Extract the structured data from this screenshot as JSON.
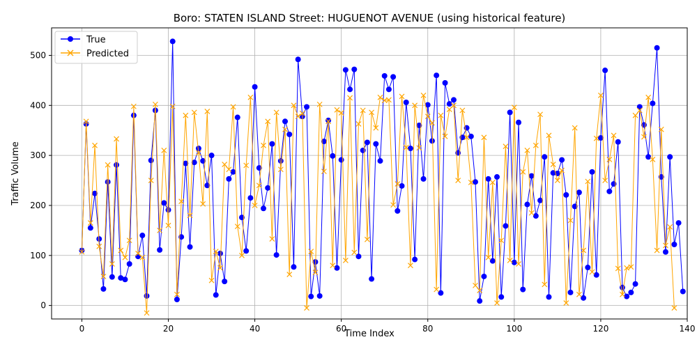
{
  "chart_data": {
    "type": "line",
    "title": "Boro: STATEN ISLAND Street: HUGUENOT AVENUE (using historical feature)",
    "xlabel": "Time Index",
    "ylabel": "Traffic Volume",
    "xlim": [
      -7,
      140
    ],
    "ylim": [
      -27,
      555
    ],
    "xticks": [
      0,
      20,
      40,
      60,
      80,
      100,
      120,
      140
    ],
    "yticks": [
      0,
      100,
      200,
      300,
      400,
      500
    ],
    "grid": true,
    "legend_position": "top-left",
    "series": [
      {
        "name": "True",
        "color": "#0000ff",
        "marker": "circle",
        "values": [
          110,
          363,
          155,
          224,
          133,
          33,
          247,
          57,
          281,
          55,
          52,
          83,
          380,
          98,
          140,
          19,
          290,
          390,
          111,
          205,
          191,
          528,
          12,
          137,
          284,
          117,
          286,
          314,
          289,
          240,
          300,
          21,
          104,
          48,
          253,
          267,
          376,
          176,
          109,
          215,
          437,
          275,
          194,
          235,
          323,
          101,
          289,
          368,
          342,
          77,
          492,
          378,
          397,
          18,
          87,
          19,
          328,
          370,
          299,
          75,
          291,
          471,
          432,
          472,
          98,
          310,
          326,
          53,
          323,
          289,
          459,
          432,
          457,
          189,
          239,
          406,
          314,
          92,
          360,
          253,
          401,
          329,
          460,
          25,
          445,
          403,
          411,
          305,
          336,
          355,
          338,
          247,
          9,
          58,
          253,
          89,
          257,
          17,
          159,
          386,
          86,
          366,
          32,
          202,
          259,
          179,
          210,
          297,
          17,
          265,
          264,
          291,
          221,
          26,
          198,
          226,
          15,
          76,
          267,
          61,
          335,
          470,
          228,
          243,
          327,
          36,
          18,
          26,
          43,
          397,
          361,
          297,
          404,
          515,
          257,
          107,
          297,
          122,
          165,
          28
        ]
      },
      {
        "name": "Predicted",
        "color": "#ffa500",
        "marker": "x",
        "values": [
          107,
          368,
          165,
          320,
          118,
          58,
          281,
          83,
          333,
          110,
          96,
          130,
          398,
          104,
          96,
          -15,
          250,
          402,
          150,
          310,
          160,
          398,
          22,
          208,
          380,
          180,
          386,
          305,
          203,
          388,
          50,
          108,
          75,
          282,
          272,
          397,
          158,
          100,
          280,
          416,
          200,
          240,
          320,
          368,
          133,
          386,
          272,
          352,
          62,
          400,
          378,
          384,
          -5,
          108,
          66,
          402,
          268,
          368,
          80,
          391,
          385,
          90,
          415,
          106,
          363,
          390,
          132,
          386,
          355,
          416,
          410,
          411,
          201,
          243,
          418,
          316,
          80,
          400,
          315,
          420,
          378,
          365,
          32,
          380,
          338,
          392,
          400,
          250,
          390,
          336,
          246,
          40,
          30,
          336,
          96,
          246,
          5,
          130,
          318,
          90,
          396,
          83,
          267,
          310,
          185,
          320,
          382,
          42,
          340,
          282,
          250,
          270,
          5,
          170,
          355,
          22,
          110,
          248,
          67,
          334,
          420,
          250,
          292,
          340,
          74,
          22,
          75,
          77,
          380,
          390,
          337,
          416,
          292,
          110,
          352,
          120,
          157,
          -5
        ]
      }
    ]
  }
}
